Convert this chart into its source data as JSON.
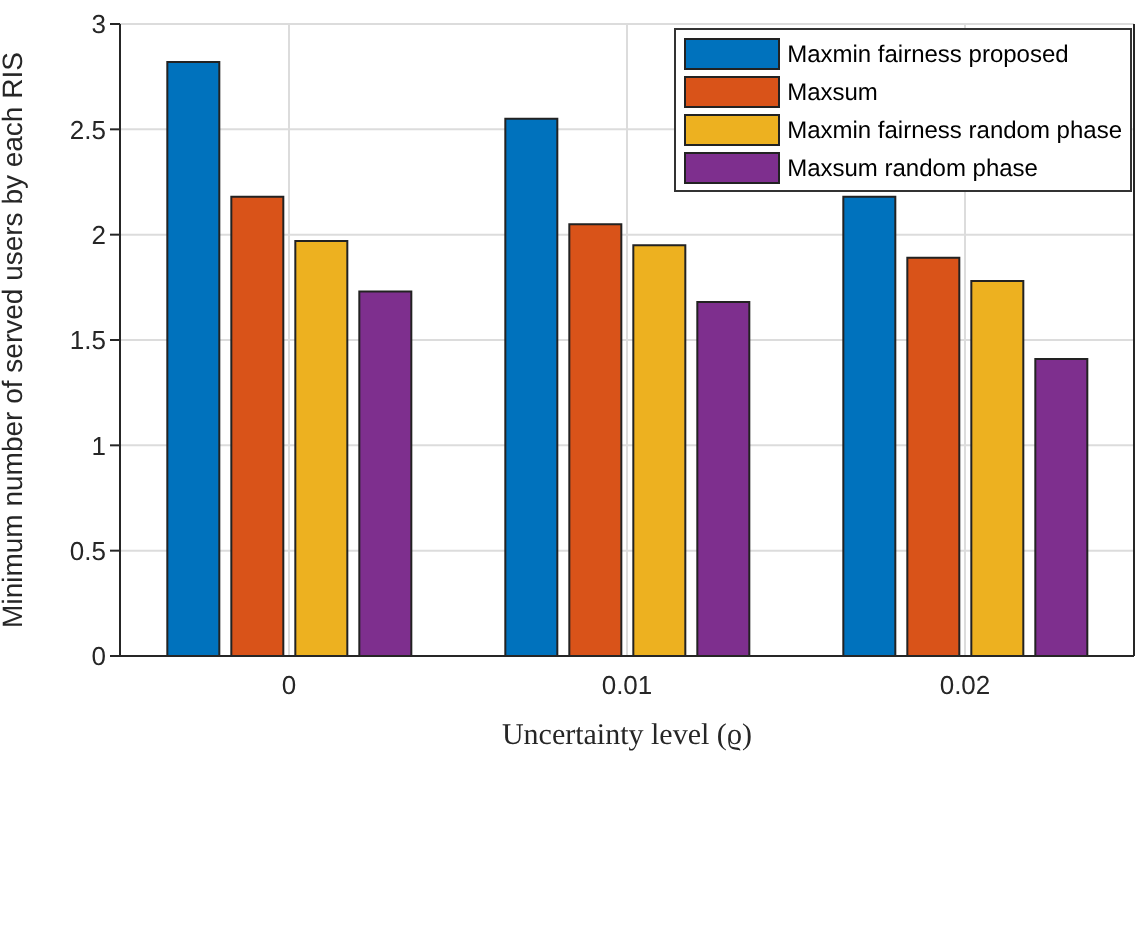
{
  "chart_data": {
    "type": "bar",
    "xlabel": "Uncertainty level (ϱ)",
    "ylabel": "Minimum number of served users by each RIS",
    "categories": [
      "0",
      "0.01",
      "0.02"
    ],
    "series": [
      {
        "name": "Maxmin fairness proposed",
        "color": "#0072bd",
        "values": [
          2.82,
          2.55,
          2.18
        ]
      },
      {
        "name": "Maxsum",
        "color": "#d95319",
        "values": [
          2.18,
          2.05,
          1.89
        ]
      },
      {
        "name": "Maxmin fairness random phase",
        "color": "#edb120",
        "values": [
          1.97,
          1.95,
          1.78
        ]
      },
      {
        "name": "Maxsum random phase",
        "color": "#7e2f8e",
        "values": [
          1.73,
          1.68,
          1.41
        ]
      }
    ],
    "ylim": [
      0,
      3
    ],
    "yticks": [
      0,
      0.5,
      1,
      1.5,
      2,
      2.5,
      3
    ],
    "grid": true,
    "legend": "top right"
  }
}
